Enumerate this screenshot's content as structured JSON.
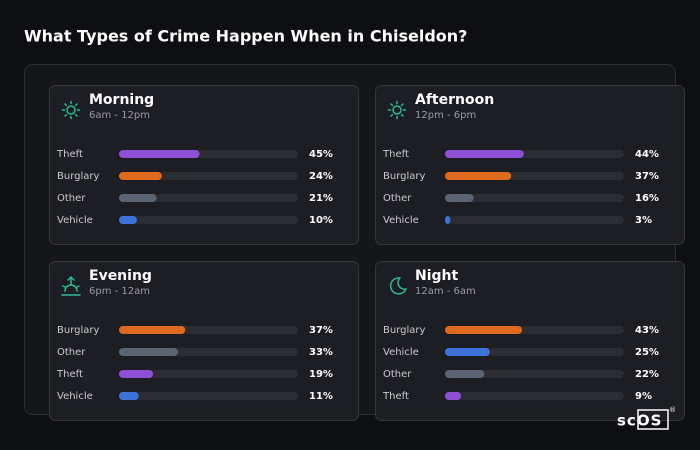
{
  "title": "What Types of Crime Happen When in Chiseldon?",
  "logo": "scOS",
  "logo_mark": "®",
  "chart_data": [
    {
      "type": "bar",
      "title": "Morning",
      "subtitle": "6am - 12pm",
      "categories": [
        "Theft",
        "Burglary",
        "Other",
        "Vehicle"
      ],
      "values": [
        45,
        24,
        21,
        10
      ],
      "value_labels": [
        "45%",
        "24%",
        "21%",
        "10%"
      ],
      "colors": [
        "#8e4fd6",
        "#df6a1f",
        "#5b6474",
        "#3b73d9"
      ],
      "xlim": [
        0,
        100
      ]
    },
    {
      "type": "bar",
      "title": "Afternoon",
      "subtitle": "12pm - 6pm",
      "categories": [
        "Theft",
        "Burglary",
        "Other",
        "Vehicle"
      ],
      "values": [
        44,
        37,
        16,
        3
      ],
      "value_labels": [
        "44%",
        "37%",
        "16%",
        "3%"
      ],
      "colors": [
        "#8e4fd6",
        "#df6a1f",
        "#5b6474",
        "#3b73d9"
      ],
      "xlim": [
        0,
        100
      ]
    },
    {
      "type": "bar",
      "title": "Evening",
      "subtitle": "6pm - 12am",
      "categories": [
        "Burglary",
        "Other",
        "Theft",
        "Vehicle"
      ],
      "values": [
        37,
        33,
        19,
        11
      ],
      "value_labels": [
        "37%",
        "33%",
        "19%",
        "11%"
      ],
      "colors": [
        "#df6a1f",
        "#5b6474",
        "#8e4fd6",
        "#3b73d9"
      ],
      "xlim": [
        0,
        100
      ]
    },
    {
      "type": "bar",
      "title": "Night",
      "subtitle": "12am - 6am",
      "categories": [
        "Burglary",
        "Vehicle",
        "Other",
        "Theft"
      ],
      "values": [
        43,
        25,
        22,
        9
      ],
      "value_labels": [
        "43%",
        "25%",
        "22%",
        "9%"
      ],
      "colors": [
        "#df6a1f",
        "#3b73d9",
        "#5b6474",
        "#8e4fd6"
      ],
      "xlim": [
        0,
        100
      ]
    }
  ]
}
